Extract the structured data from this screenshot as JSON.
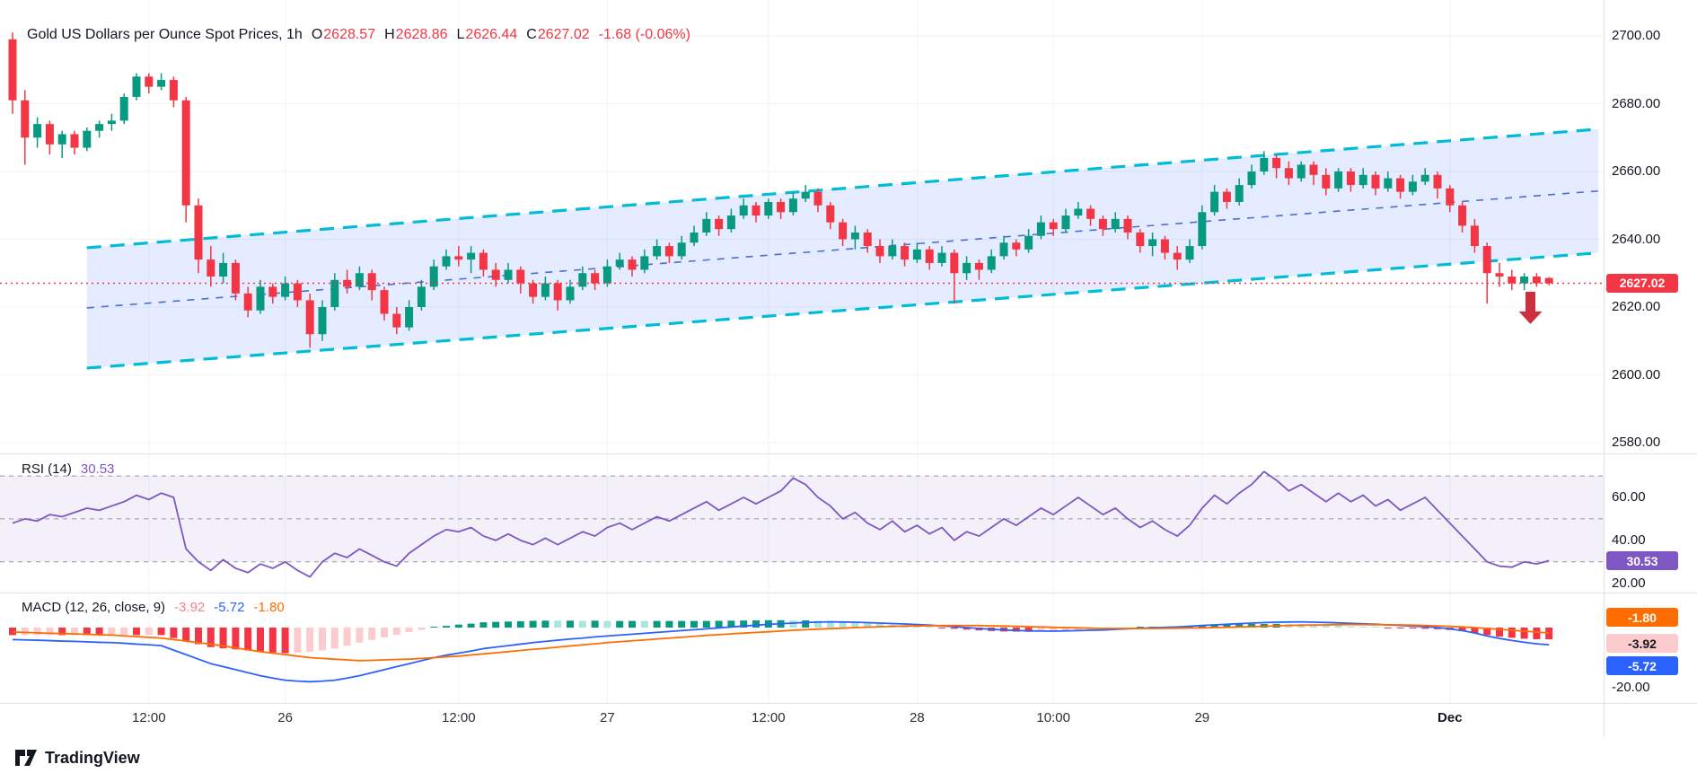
{
  "main_panel": {
    "title": "Gold US Dollars per Ounce Spot Prices, 1h",
    "ohlc": {
      "o_label": "O",
      "o": "2628.57",
      "h_label": "H",
      "h": "2628.86",
      "l_label": "L",
      "l": "2626.44",
      "c_label": "C",
      "c": "2627.02",
      "change": "-1.68 (-0.06%)"
    },
    "price_badge": "2627.02",
    "y_ticks": [
      "2700.00",
      "2680.00",
      "2660.00",
      "2640.00",
      "2620.00",
      "2600.00",
      "2580.00"
    ]
  },
  "rsi_panel": {
    "label": "RSI (14)",
    "value": "30.53",
    "y_ticks": [
      "60.00",
      "40.00",
      "20.00"
    ],
    "badge": {
      "text": "30.53",
      "bg": "#7e57c2",
      "fg": "#ffffff"
    }
  },
  "macd_panel": {
    "label": "MACD (12, 26, close, 9)",
    "hist_value": "-3.92",
    "macd_value": "-5.72",
    "signal_value": "-1.80",
    "y_ticks": [
      "-20.00"
    ],
    "badges": [
      {
        "text": "-1.80",
        "bg": "#ff6d00",
        "fg": "#ffffff"
      },
      {
        "text": "-3.92",
        "bg": "#fccbcd",
        "fg": "#131722"
      },
      {
        "text": "-5.72",
        "bg": "#2962ff",
        "fg": "#ffffff"
      }
    ]
  },
  "time_axis": {
    "labels": [
      {
        "text": "12:00",
        "i": 11,
        "bold": false
      },
      {
        "text": "26",
        "i": 22,
        "bold": false
      },
      {
        "text": "12:00",
        "i": 36,
        "bold": false
      },
      {
        "text": "27",
        "i": 48,
        "bold": false
      },
      {
        "text": "12:00",
        "i": 61,
        "bold": false
      },
      {
        "text": "28",
        "i": 73,
        "bold": false
      },
      {
        "text": "10:00",
        "i": 84,
        "bold": false
      },
      {
        "text": "29",
        "i": 96,
        "bold": false
      },
      {
        "text": "Dec",
        "i": 116,
        "bold": true
      }
    ]
  },
  "footer": {
    "brand": "TradingView"
  },
  "chart_data": [
    {
      "id": "price",
      "type": "candlestick",
      "title": "Gold US Dollars per Ounce Spot Prices, 1h",
      "ylim": [
        2577,
        2711
      ],
      "y_tick_values": [
        2700,
        2680,
        2660,
        2640,
        2620,
        2600,
        2580
      ],
      "last_price": 2627.02,
      "colors": {
        "up": "#089981",
        "down": "#f23645",
        "channel_line": "#00bcd4",
        "channel_mid": "#4a6fd1",
        "channel_fill": "rgba(41,98,255,0.12)",
        "price_line": "#f23645",
        "arrow": "#cc2f3d"
      },
      "channel": {
        "start_index": 6,
        "end_index": 128,
        "upper_start": 2637.5,
        "upper_end": 2672.5,
        "lower_start": 2602,
        "lower_end": 2636
      },
      "arrow": {
        "index": 122.5,
        "price_top": 2624.5,
        "price_tip": 2615
      },
      "candles": [
        [
          2699,
          2701,
          2677,
          2681
        ],
        [
          2681,
          2684,
          2662,
          2670
        ],
        [
          2670,
          2676,
          2667,
          2674
        ],
        [
          2674,
          2675,
          2665,
          2668
        ],
        [
          2668,
          2672,
          2664,
          2671
        ],
        [
          2671,
          2672,
          2665,
          2667
        ],
        [
          2667,
          2673,
          2666,
          2672
        ],
        [
          2672,
          2675,
          2670,
          2674
        ],
        [
          2674,
          2677,
          2672,
          2675
        ],
        [
          2675,
          2683,
          2674,
          2682
        ],
        [
          2682,
          2689,
          2681,
          2688
        ],
        [
          2688,
          2689,
          2683,
          2685
        ],
        [
          2685,
          2689,
          2684,
          2687
        ],
        [
          2687,
          2688,
          2679,
          2681
        ],
        [
          2681,
          2682,
          2645,
          2650
        ],
        [
          2650,
          2652,
          2630,
          2634
        ],
        [
          2634,
          2638,
          2626,
          2629
        ],
        [
          2629,
          2636,
          2627,
          2633
        ],
        [
          2633,
          2634,
          2622,
          2624
        ],
        [
          2624,
          2626,
          2617,
          2619
        ],
        [
          2619,
          2628,
          2618,
          2626
        ],
        [
          2626,
          2627,
          2621,
          2623
        ],
        [
          2623,
          2629,
          2622,
          2627
        ],
        [
          2627,
          2628,
          2620,
          2622
        ],
        [
          2622,
          2624,
          2608,
          2612
        ],
        [
          2612,
          2622,
          2610,
          2620
        ],
        [
          2620,
          2630,
          2619,
          2628
        ],
        [
          2628,
          2631,
          2624,
          2626
        ],
        [
          2626,
          2632,
          2625,
          2630
        ],
        [
          2630,
          2631,
          2622,
          2625
        ],
        [
          2625,
          2626,
          2616,
          2618
        ],
        [
          2618,
          2620,
          2612,
          2614
        ],
        [
          2614,
          2622,
          2613,
          2620
        ],
        [
          2620,
          2628,
          2619,
          2626
        ],
        [
          2626,
          2634,
          2625,
          2632
        ],
        [
          2632,
          2637,
          2631,
          2635
        ],
        [
          2635,
          2638,
          2632,
          2634
        ],
        [
          2634,
          2638,
          2630,
          2636
        ],
        [
          2636,
          2637,
          2629,
          2631
        ],
        [
          2631,
          2633,
          2626,
          2628
        ],
        [
          2628,
          2633,
          2627,
          2631
        ],
        [
          2631,
          2632,
          2624,
          2627
        ],
        [
          2627,
          2628,
          2621,
          2623
        ],
        [
          2623,
          2629,
          2622,
          2627
        ],
        [
          2627,
          2628,
          2619,
          2622
        ],
        [
          2622,
          2628,
          2621,
          2626
        ],
        [
          2626,
          2632,
          2625,
          2630
        ],
        [
          2630,
          2631,
          2625,
          2627
        ],
        [
          2627,
          2634,
          2626,
          2632
        ],
        [
          2632,
          2636,
          2631,
          2634
        ],
        [
          2634,
          2635,
          2629,
          2631
        ],
        [
          2631,
          2637,
          2630,
          2635
        ],
        [
          2635,
          2640,
          2634,
          2638
        ],
        [
          2638,
          2639,
          2633,
          2635
        ],
        [
          2635,
          2641,
          2634,
          2639
        ],
        [
          2639,
          2644,
          2638,
          2642
        ],
        [
          2642,
          2648,
          2641,
          2646
        ],
        [
          2646,
          2647,
          2641,
          2643
        ],
        [
          2643,
          2649,
          2642,
          2647
        ],
        [
          2647,
          2652,
          2646,
          2650
        ],
        [
          2650,
          2651,
          2645,
          2647
        ],
        [
          2647,
          2652,
          2646,
          2651
        ],
        [
          2651,
          2652,
          2646,
          2648
        ],
        [
          2648,
          2654,
          2647,
          2652
        ],
        [
          2652,
          2656,
          2651,
          2654
        ],
        [
          2654,
          2655,
          2648,
          2650
        ],
        [
          2650,
          2651,
          2643,
          2645
        ],
        [
          2645,
          2646,
          2638,
          2640
        ],
        [
          2640,
          2644,
          2637,
          2642
        ],
        [
          2642,
          2643,
          2636,
          2638
        ],
        [
          2638,
          2640,
          2633,
          2635
        ],
        [
          2635,
          2640,
          2634,
          2638
        ],
        [
          2638,
          2639,
          2632,
          2634
        ],
        [
          2634,
          2639,
          2633,
          2637
        ],
        [
          2637,
          2638,
          2631,
          2633
        ],
        [
          2633,
          2638,
          2632,
          2636
        ],
        [
          2636,
          2637,
          2621,
          2630
        ],
        [
          2630,
          2635,
          2628,
          2633
        ],
        [
          2633,
          2634,
          2628,
          2631
        ],
        [
          2631,
          2637,
          2630,
          2635
        ],
        [
          2635,
          2641,
          2634,
          2639
        ],
        [
          2639,
          2640,
          2635,
          2637
        ],
        [
          2637,
          2643,
          2636,
          2641
        ],
        [
          2641,
          2647,
          2640,
          2645
        ],
        [
          2645,
          2646,
          2641,
          2643
        ],
        [
          2643,
          2649,
          2642,
          2647
        ],
        [
          2647,
          2651,
          2646,
          2649
        ],
        [
          2649,
          2650,
          2644,
          2646
        ],
        [
          2646,
          2647,
          2641,
          2643
        ],
        [
          2643,
          2648,
          2642,
          2646
        ],
        [
          2646,
          2647,
          2640,
          2642
        ],
        [
          2642,
          2643,
          2636,
          2638
        ],
        [
          2638,
          2642,
          2635,
          2640
        ],
        [
          2640,
          2641,
          2634,
          2636
        ],
        [
          2636,
          2638,
          2631,
          2634
        ],
        [
          2634,
          2640,
          2633,
          2638
        ],
        [
          2638,
          2650,
          2637,
          2648
        ],
        [
          2648,
          2656,
          2647,
          2654
        ],
        [
          2654,
          2655,
          2649,
          2651
        ],
        [
          2651,
          2658,
          2650,
          2656
        ],
        [
          2656,
          2662,
          2655,
          2660
        ],
        [
          2660,
          2666,
          2659,
          2664
        ],
        [
          2664,
          2665,
          2658,
          2661
        ],
        [
          2661,
          2663,
          2656,
          2658
        ],
        [
          2658,
          2663,
          2657,
          2662
        ],
        [
          2662,
          2663,
          2656,
          2659
        ],
        [
          2659,
          2661,
          2653,
          2655
        ],
        [
          2655,
          2661,
          2654,
          2660
        ],
        [
          2660,
          2661,
          2654,
          2656
        ],
        [
          2656,
          2661,
          2655,
          2659
        ],
        [
          2659,
          2660,
          2653,
          2655
        ],
        [
          2655,
          2660,
          2654,
          2658
        ],
        [
          2658,
          2659,
          2652,
          2654
        ],
        [
          2654,
          2659,
          2653,
          2657
        ],
        [
          2657,
          2661,
          2656,
          2659
        ],
        [
          2659,
          2660,
          2652,
          2655
        ],
        [
          2655,
          2656,
          2648,
          2650
        ],
        [
          2650,
          2651,
          2642,
          2644
        ],
        [
          2644,
          2646,
          2636,
          2638
        ],
        [
          2638,
          2639,
          2621,
          2630
        ],
        [
          2630,
          2633,
          2626,
          2629
        ],
        [
          2629,
          2631,
          2625,
          2627
        ],
        [
          2627,
          2630,
          2625,
          2629
        ],
        [
          2629,
          2630,
          2626,
          2627
        ],
        [
          2628.57,
          2628.86,
          2626.44,
          2627.02
        ]
      ]
    },
    {
      "id": "rsi",
      "type": "line",
      "title": "RSI (14)",
      "last_value": 30.53,
      "ylim": [
        16,
        80
      ],
      "bands": [
        70,
        50,
        30
      ],
      "y_tick_values": [
        60,
        40,
        20
      ],
      "colors": {
        "line": "#7e57c2",
        "band_fill": "rgba(126,87,194,0.09)",
        "dash": "#9598a1"
      },
      "values": [
        48,
        50,
        49,
        52,
        51,
        53,
        55,
        54,
        56,
        58,
        61,
        59,
        62,
        60,
        36,
        30,
        26,
        31,
        27,
        25,
        29,
        27,
        30,
        26,
        23,
        30,
        34,
        32,
        36,
        33,
        30,
        28,
        34,
        38,
        42,
        45,
        44,
        46,
        42,
        40,
        43,
        40,
        38,
        41,
        38,
        41,
        44,
        42,
        46,
        48,
        45,
        48,
        51,
        49,
        52,
        55,
        58,
        54,
        57,
        60,
        57,
        60,
        63,
        69,
        66,
        60,
        56,
        50,
        53,
        48,
        45,
        49,
        44,
        47,
        43,
        46,
        40,
        44,
        42,
        46,
        50,
        47,
        51,
        55,
        52,
        56,
        60,
        56,
        52,
        55,
        50,
        46,
        49,
        45,
        42,
        47,
        55,
        61,
        57,
        62,
        66,
        72,
        68,
        63,
        66,
        62,
        58,
        62,
        58,
        61,
        56,
        59,
        54,
        57,
        60,
        54,
        48,
        42,
        36,
        30,
        28,
        27.5,
        30,
        29,
        30.53
      ]
    },
    {
      "id": "macd",
      "type": "line",
      "title": "MACD (12, 26, close, 9)",
      "last_hist": -3.92,
      "last_macd": -5.72,
      "last_signal": -1.8,
      "ylim": [
        -25,
        12
      ],
      "y_tick_values": [
        -20
      ],
      "colors": {
        "macd": "#2962ff",
        "signal": "#ff6d00",
        "hist_pos": "#089981",
        "hist_pos_light": "#ace5dc",
        "hist_neg": "#f23645",
        "hist_neg_light": "#fccbcd"
      },
      "macd": [
        -4,
        -4.1,
        -4.2,
        -4.35,
        -4.5,
        -4.6,
        -4.75,
        -4.9,
        -5,
        -5.2,
        -5.5,
        -5.7,
        -6,
        -7.5,
        -9,
        -10.5,
        -12,
        -13,
        -14,
        -15,
        -16,
        -16.8,
        -17.5,
        -17.8,
        -18,
        -17.8,
        -17.5,
        -16.8,
        -16,
        -15,
        -14,
        -13,
        -12,
        -11,
        -10,
        -9.2,
        -8.5,
        -7.8,
        -7,
        -6.5,
        -6,
        -5.5,
        -5,
        -4.6,
        -4.2,
        -3.8,
        -3.5,
        -3.1,
        -2.8,
        -2.5,
        -2.2,
        -1.9,
        -1.6,
        -1.3,
        -1,
        -0.7,
        -0.4,
        -0.1,
        0.2,
        0.5,
        0.8,
        1.05,
        1.3,
        1.5,
        1.7,
        1.8,
        1.9,
        1.85,
        1.8,
        1.65,
        1.5,
        1.35,
        1.2,
        1,
        0.8,
        0.55,
        0.3,
        0,
        -0.3,
        -0.55,
        -0.8,
        -0.95,
        -1.1,
        -1.15,
        -1.2,
        -1.1,
        -1,
        -0.9,
        -0.8,
        -0.6,
        -0.4,
        -0.25,
        -0.1,
        0.05,
        0.2,
        0.45,
        0.7,
        0.9,
        1.1,
        1.3,
        1.5,
        1.65,
        1.8,
        1.85,
        1.9,
        1.8,
        1.7,
        1.55,
        1.4,
        1.25,
        1.1,
        0.9,
        0.7,
        0.5,
        0.3,
        0,
        -0.4,
        -1,
        -1.8,
        -2.8,
        -3.6,
        -4.3,
        -4.9,
        -5.4,
        -5.72
      ],
      "signal": [
        -1.5,
        -1.6,
        -1.75,
        -1.9,
        -2,
        -2.1,
        -2.25,
        -2.4,
        -2.5,
        -2.75,
        -3,
        -3.25,
        -3.5,
        -4,
        -4.5,
        -5,
        -5.5,
        -6.1,
        -6.75,
        -7.4,
        -8,
        -8.5,
        -9,
        -9.5,
        -10,
        -10.25,
        -10.5,
        -10.75,
        -11,
        -10.9,
        -10.75,
        -10.6,
        -10.5,
        -10.25,
        -10,
        -9.75,
        -9.5,
        -9.1,
        -8.75,
        -8.4,
        -8,
        -7.6,
        -7.25,
        -6.9,
        -6.5,
        -6.1,
        -5.75,
        -5.4,
        -5,
        -4.7,
        -4.4,
        -4.1,
        -3.8,
        -3.5,
        -3.2,
        -2.9,
        -2.6,
        -2.35,
        -2.1,
        -1.85,
        -1.6,
        -1.4,
        -1.15,
        -0.9,
        -0.7,
        -0.5,
        -0.35,
        -0.2,
        0,
        0.15,
        0.25,
        0.4,
        0.5,
        0.55,
        0.6,
        0.65,
        0.7,
        0.68,
        0.65,
        0.6,
        0.5,
        0.4,
        0.3,
        0.2,
        0.1,
        0,
        -0.1,
        -0.2,
        -0.3,
        -0.3,
        -0.3,
        -0.3,
        -0.3,
        -0.25,
        -0.2,
        -0.15,
        -0.1,
        0,
        0.1,
        0.2,
        0.3,
        0.45,
        0.55,
        0.7,
        0.8,
        0.85,
        0.9,
        0.95,
        1,
        0.98,
        0.95,
        0.93,
        0.9,
        0.8,
        0.7,
        0.55,
        0.4,
        0.2,
        0,
        -0.3,
        -0.6,
        -0.9,
        -1.2,
        -1.5,
        -1.8
      ]
    }
  ]
}
